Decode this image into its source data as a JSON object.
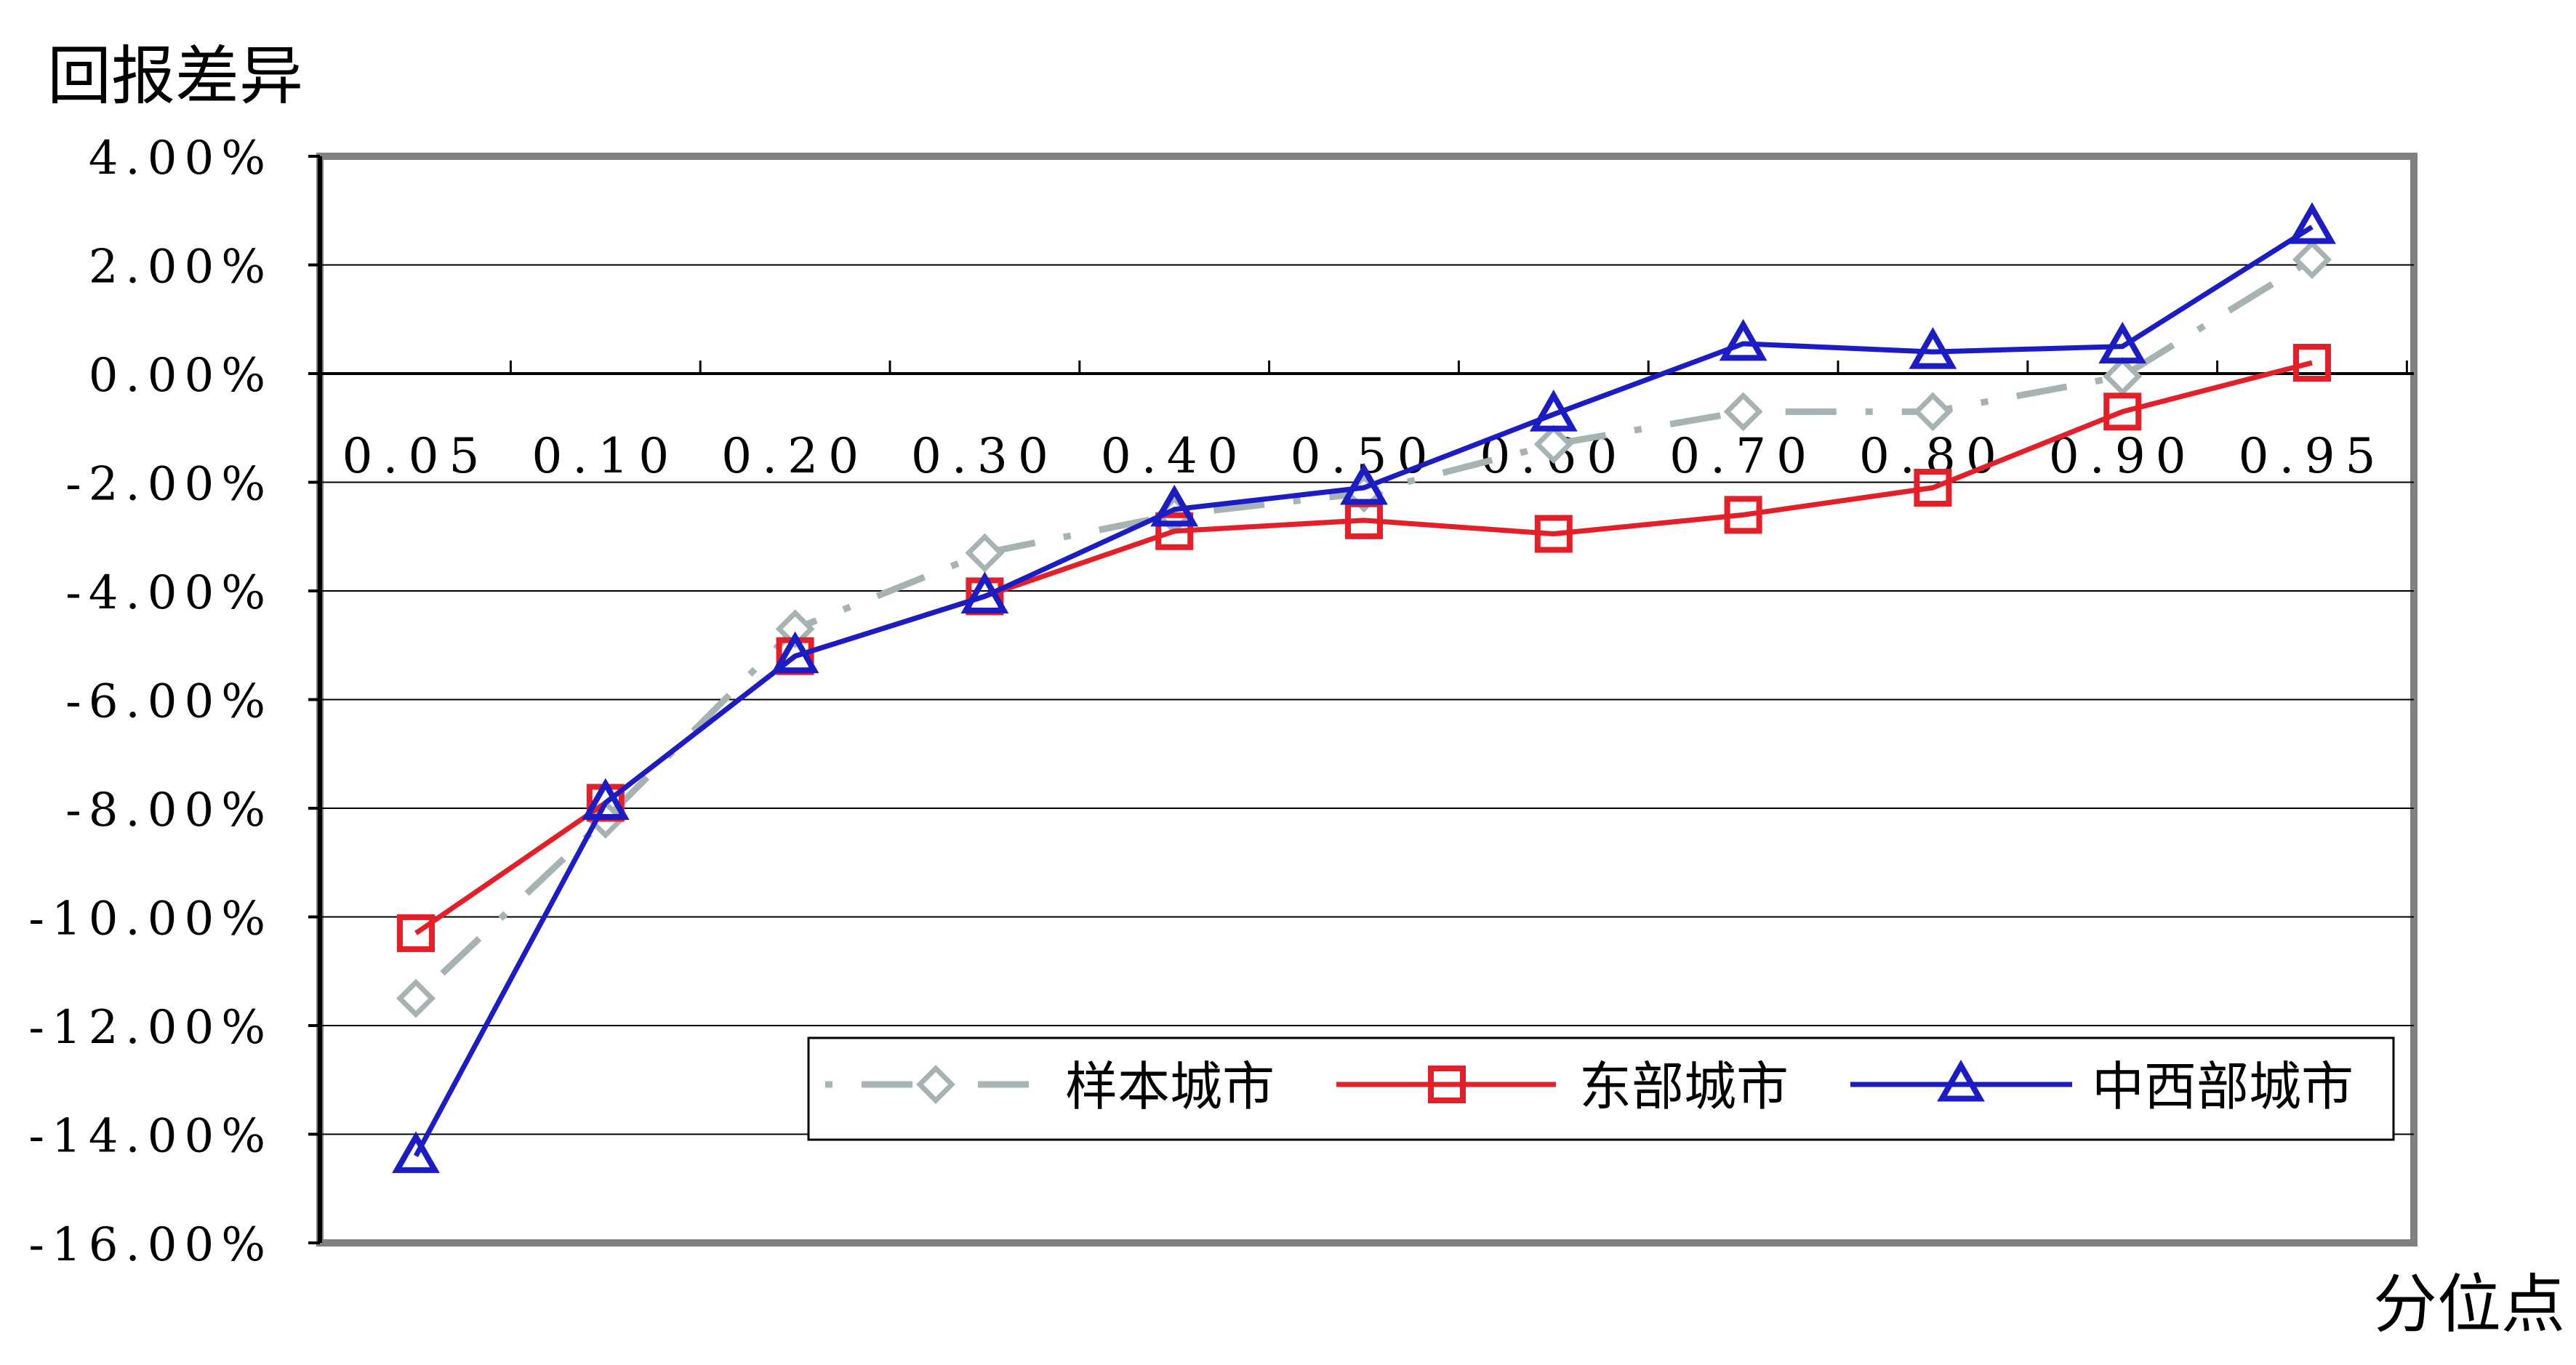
{
  "chart_data": {
    "type": "line",
    "ylabel": "回报差异",
    "xlabel": "分位点",
    "categories": [
      "0.05",
      "0.10",
      "0.20",
      "0.30",
      "0.40",
      "0.50",
      "0.60",
      "0.70",
      "0.80",
      "0.90",
      "0.95"
    ],
    "y_ticks": [
      "4.00%",
      "2.00%",
      "0.00%",
      "-2.00%",
      "-4.00%",
      "-6.00%",
      "-8.00%",
      "-10.00%",
      "-12.00%",
      "-14.00%",
      "-16.00%"
    ],
    "ylim": [
      -16,
      4
    ],
    "grid": true,
    "legend_position": "bottom-right",
    "series": [
      {
        "name": "样本城市",
        "color": "#a7b3b3",
        "line_style": "dash-dot",
        "marker": "diamond",
        "values": [
          -11.5,
          -8.2,
          -4.7,
          -3.3,
          -2.6,
          -2.2,
          -1.3,
          -0.7,
          -0.7,
          -0.05,
          2.1
        ]
      },
      {
        "name": "东部城市",
        "color": "#e3202a",
        "line_style": "solid",
        "marker": "square",
        "values": [
          -10.3,
          -7.9,
          -5.2,
          -4.1,
          -2.9,
          -2.7,
          -2.95,
          -2.6,
          -2.1,
          -0.7,
          0.2
        ]
      },
      {
        "name": "中西部城市",
        "color": "#1c1cc4",
        "line_style": "solid",
        "marker": "triangle",
        "values": [
          -14.4,
          -7.9,
          -5.2,
          -4.1,
          -2.5,
          -2.1,
          -0.75,
          0.55,
          0.4,
          0.5,
          2.7
        ]
      }
    ]
  }
}
